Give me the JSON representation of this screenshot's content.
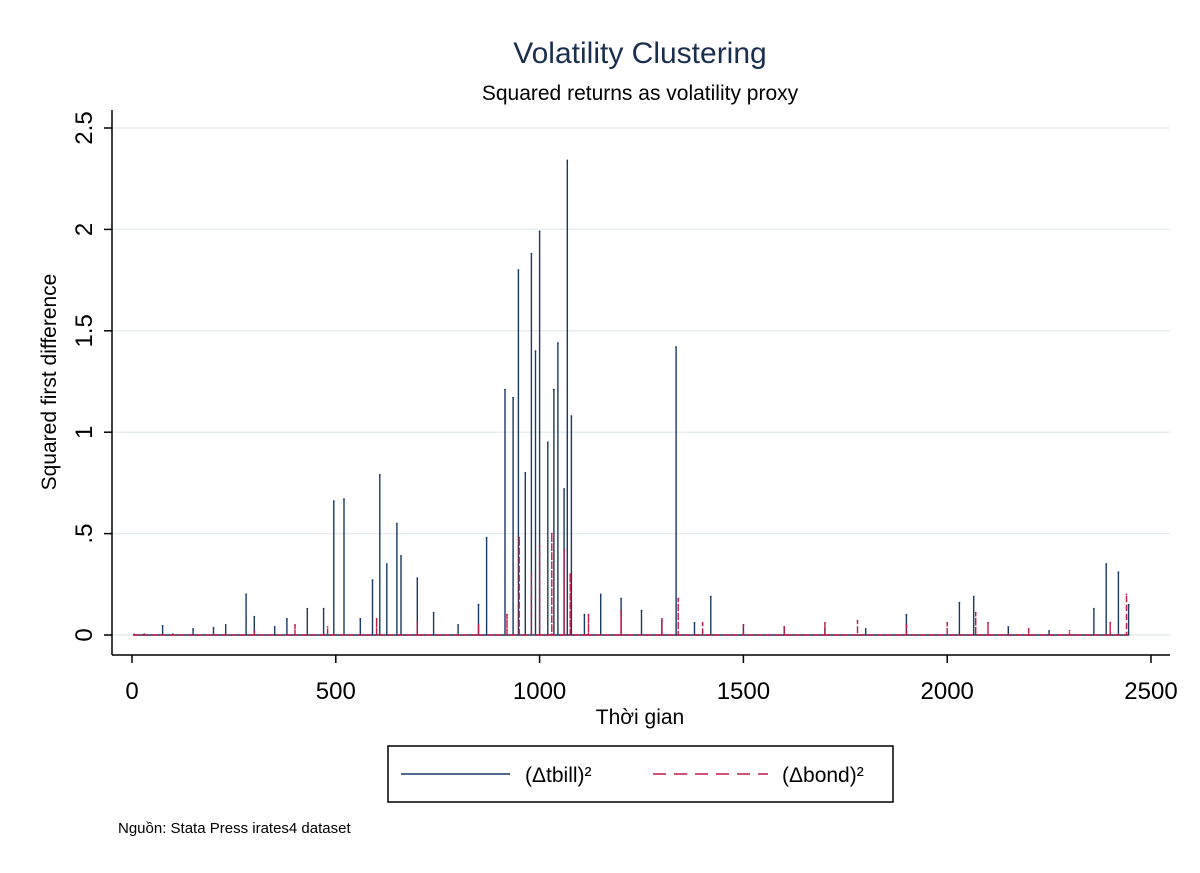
{
  "chart_data": {
    "type": "line",
    "title": "Volatility Clustering",
    "subtitle": "Squared returns as volatility proxy",
    "xlabel": "Thời gian",
    "ylabel": "Squared first difference",
    "xlim": [
      0,
      2500
    ],
    "ylim": [
      0,
      2.5
    ],
    "x_ticks": [
      0,
      500,
      1000,
      1500,
      2000,
      2500
    ],
    "x_tick_labels": [
      "0",
      "500",
      "1000",
      "1500",
      "2000",
      "2500"
    ],
    "y_ticks": [
      0,
      0.5,
      1,
      1.5,
      2,
      2.5
    ],
    "y_tick_labels": [
      "0",
      ".5",
      "1",
      "1.5",
      "2",
      "2.5"
    ],
    "grid": "horizontal",
    "legend_position": "bottom",
    "note": "Nguồn: Stata Press irates4 dataset",
    "series": [
      {
        "name": "(Δtbill)²",
        "color": "#1a3a63",
        "dash": "solid",
        "points": [
          [
            5,
            0.003
          ],
          [
            30,
            0.004
          ],
          [
            75,
            0.045
          ],
          [
            100,
            0.004
          ],
          [
            150,
            0.03
          ],
          [
            200,
            0.035
          ],
          [
            230,
            0.05
          ],
          [
            280,
            0.2
          ],
          [
            300,
            0.09
          ],
          [
            350,
            0.04
          ],
          [
            380,
            0.08
          ],
          [
            430,
            0.13
          ],
          [
            470,
            0.13
          ],
          [
            495,
            0.66
          ],
          [
            520,
            0.67
          ],
          [
            560,
            0.08
          ],
          [
            590,
            0.27
          ],
          [
            608,
            0.79
          ],
          [
            625,
            0.35
          ],
          [
            650,
            0.55
          ],
          [
            660,
            0.39
          ],
          [
            700,
            0.28
          ],
          [
            740,
            0.11
          ],
          [
            800,
            0.05
          ],
          [
            850,
            0.15
          ],
          [
            870,
            0.48
          ],
          [
            915,
            1.21
          ],
          [
            935,
            1.17
          ],
          [
            948,
            1.8
          ],
          [
            965,
            0.8
          ],
          [
            980,
            1.88
          ],
          [
            990,
            1.4
          ],
          [
            1000,
            1.99
          ],
          [
            1020,
            0.95
          ],
          [
            1035,
            1.21
          ],
          [
            1045,
            1.44
          ],
          [
            1060,
            0.72
          ],
          [
            1068,
            2.34
          ],
          [
            1078,
            1.08
          ],
          [
            1110,
            0.1
          ],
          [
            1150,
            0.2
          ],
          [
            1200,
            0.18
          ],
          [
            1250,
            0.12
          ],
          [
            1300,
            0.07
          ],
          [
            1335,
            1.42
          ],
          [
            1380,
            0.06
          ],
          [
            1420,
            0.19
          ],
          [
            1500,
            0.05
          ],
          [
            1600,
            0.04
          ],
          [
            1700,
            0.03
          ],
          [
            1800,
            0.03
          ],
          [
            1900,
            0.1
          ],
          [
            2030,
            0.16
          ],
          [
            2065,
            0.19
          ],
          [
            2150,
            0.04
          ],
          [
            2250,
            0.02
          ],
          [
            2360,
            0.13
          ],
          [
            2390,
            0.35
          ],
          [
            2420,
            0.31
          ],
          [
            2445,
            0.15
          ]
        ]
      },
      {
        "name": "(Δbond)²",
        "color": "#c1184a",
        "dash": "dashed",
        "points": [
          [
            5,
            0.002
          ],
          [
            200,
            0.004
          ],
          [
            300,
            0.02
          ],
          [
            400,
            0.05
          ],
          [
            480,
            0.04
          ],
          [
            600,
            0.08
          ],
          [
            700,
            0.06
          ],
          [
            850,
            0.05
          ],
          [
            920,
            0.1
          ],
          [
            950,
            0.48
          ],
          [
            980,
            0.3
          ],
          [
            1000,
            0.44
          ],
          [
            1030,
            0.5
          ],
          [
            1060,
            0.42
          ],
          [
            1075,
            0.3
          ],
          [
            1120,
            0.1
          ],
          [
            1200,
            0.12
          ],
          [
            1300,
            0.08
          ],
          [
            1340,
            0.18
          ],
          [
            1400,
            0.06
          ],
          [
            1500,
            0.05
          ],
          [
            1600,
            0.04
          ],
          [
            1700,
            0.06
          ],
          [
            1780,
            0.07
          ],
          [
            1900,
            0.05
          ],
          [
            2000,
            0.06
          ],
          [
            2070,
            0.11
          ],
          [
            2100,
            0.06
          ],
          [
            2200,
            0.03
          ],
          [
            2300,
            0.02
          ],
          [
            2400,
            0.06
          ],
          [
            2440,
            0.2
          ]
        ]
      }
    ]
  }
}
